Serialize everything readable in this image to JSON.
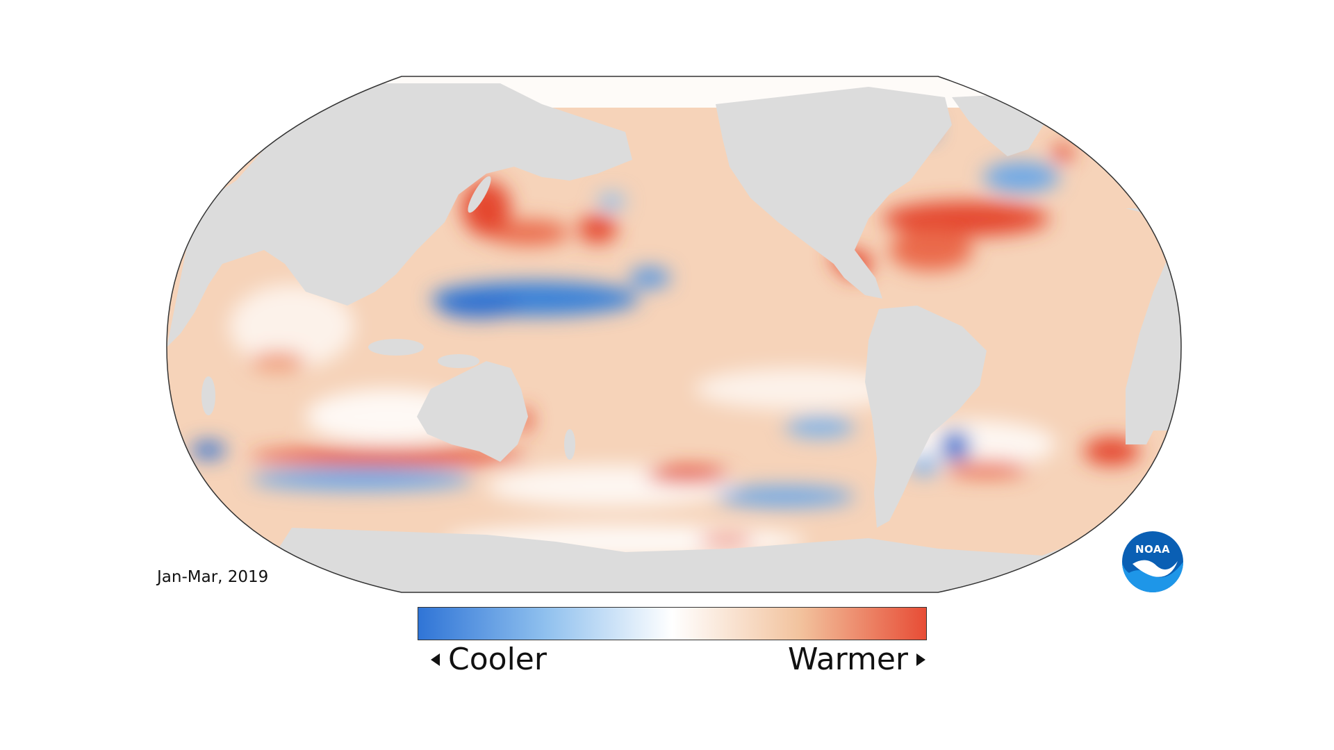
{
  "map": {
    "period": "Jan-Mar, 2019",
    "projection": "robinson",
    "variable": "sea surface temperature anomaly"
  },
  "legend": {
    "cooler_label": "Cooler",
    "warmer_label": "Warmer",
    "gradient_colors": [
      "#2f74d6",
      "#8fc0ee",
      "#ffffff",
      "#f2c39e",
      "#e74c35"
    ]
  },
  "logo": {
    "text": "NOAA",
    "icon": "noaa-logo-icon",
    "colors": [
      "#0a5fb4",
      "#1e96e8",
      "#ffffff"
    ]
  },
  "colors": {
    "land": "#dcdcdc",
    "ocean_warm": "#f3c7a6",
    "ocean_hot": "#e4472e",
    "ocean_cool": "#3b82d8",
    "outline": "#333333"
  }
}
